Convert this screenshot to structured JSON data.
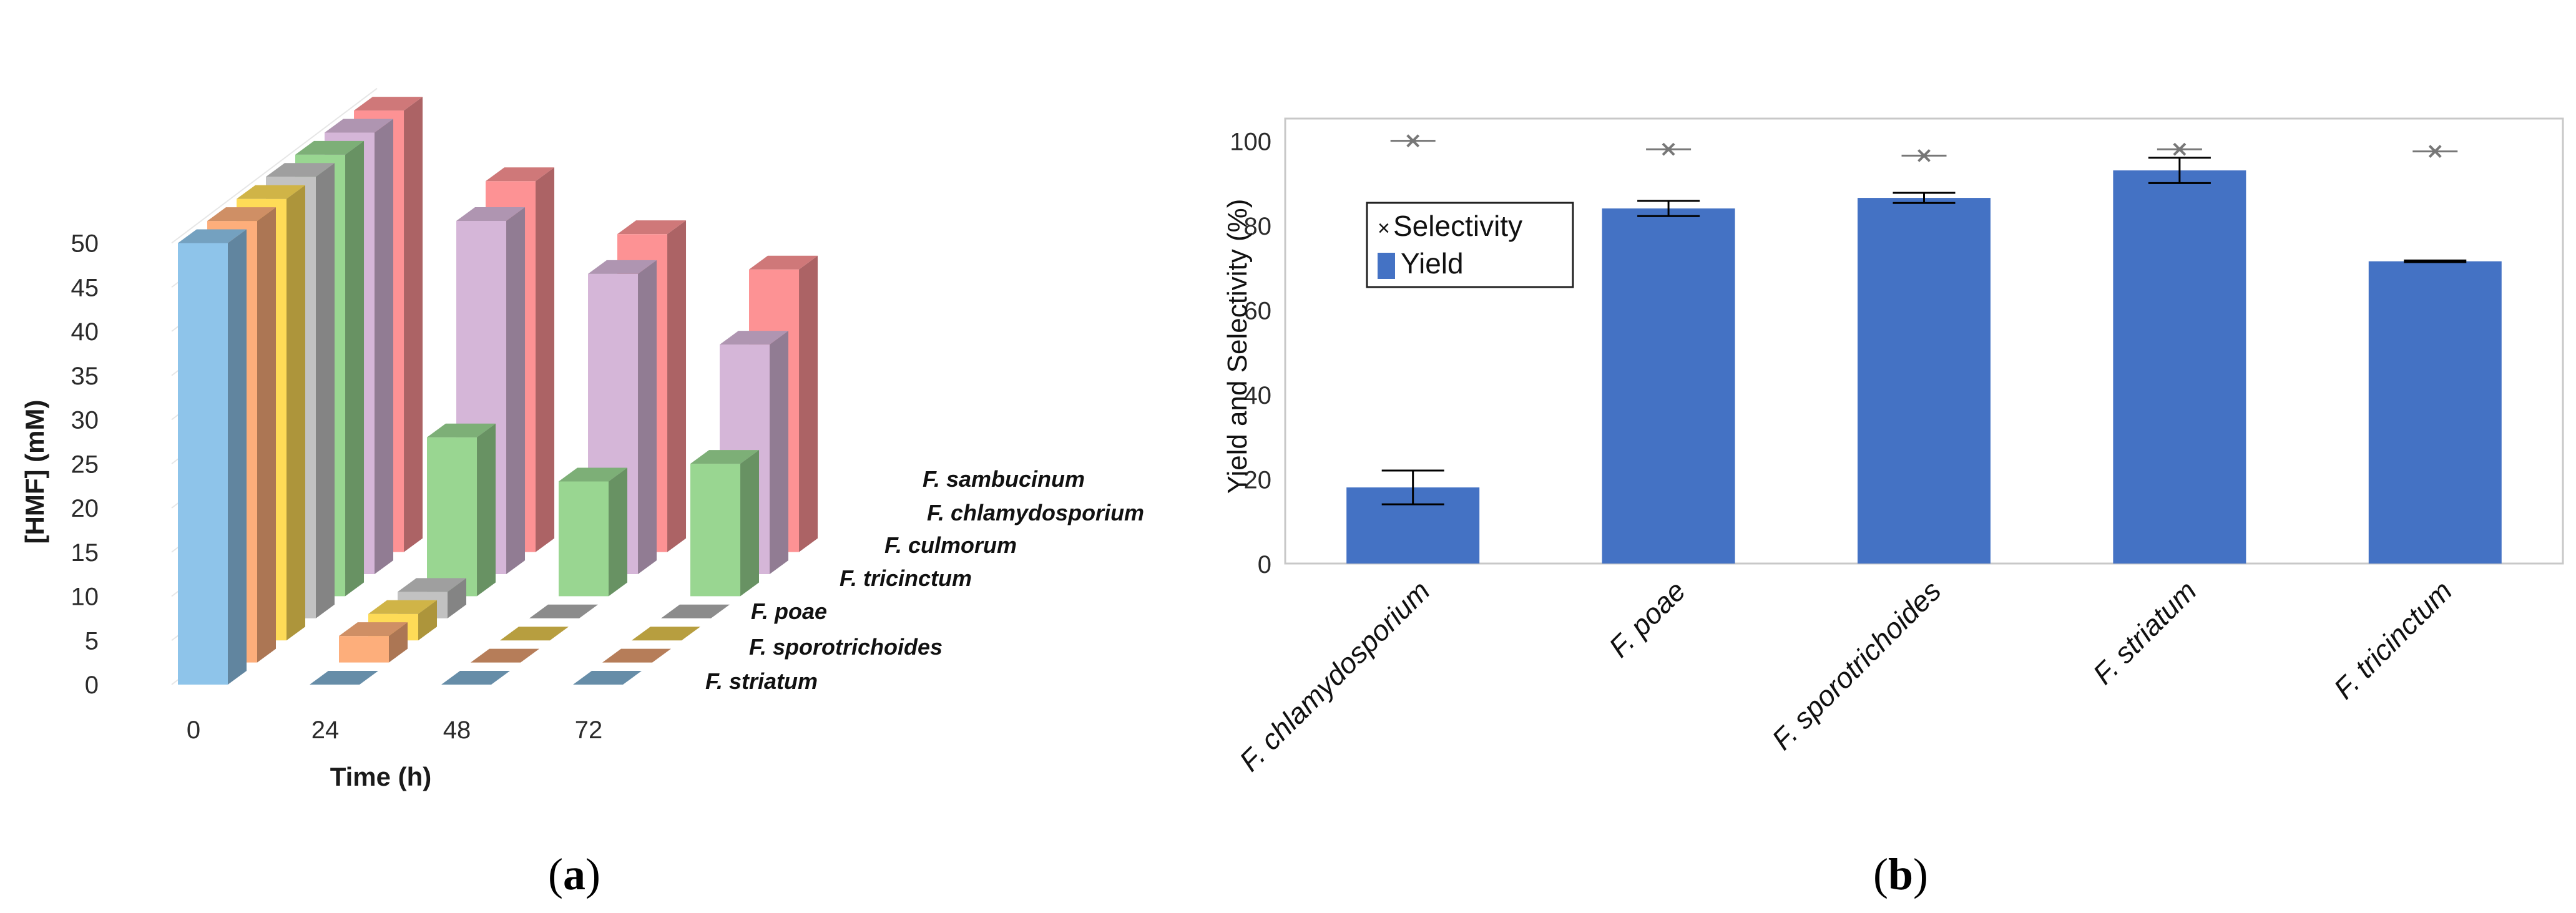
{
  "chart_data": [
    {
      "panel": "a",
      "type": "bar",
      "subtype": "3d-grouped-bar",
      "title": "",
      "xlabel": "Time (h)",
      "ylabel": "[HMF] (mM)",
      "ylim": [
        0,
        50
      ],
      "yticks": [
        "0",
        "5",
        "10",
        "15",
        "20",
        "25",
        "30",
        "35",
        "40",
        "45",
        "50"
      ],
      "categories": [
        "0",
        "24",
        "48",
        "72"
      ],
      "series": [
        {
          "name": "F. striatum",
          "color": "#8ec4ea",
          "values": [
            50,
            0,
            0,
            0
          ]
        },
        {
          "name": "F. sporotrichoides",
          "color": "#fdae7b",
          "values": [
            50,
            3,
            0,
            0
          ]
        },
        {
          "name": "F. poae",
          "color": "#fedb57",
          "values": [
            50,
            3,
            0,
            0
          ]
        },
        {
          "name": "F. tricinctum",
          "color": "#c2c2c2",
          "values": [
            50,
            3,
            0,
            0
          ]
        },
        {
          "name": "F. culmorum",
          "color": "#99d691",
          "values": [
            50,
            18,
            13,
            15
          ]
        },
        {
          "name": "F. chlamydosporium",
          "color": "#d5b6d8",
          "values": [
            50,
            40,
            34,
            26
          ]
        },
        {
          "name": "F. sambucinum",
          "color": "#fd9294",
          "values": [
            50,
            42,
            36,
            32
          ]
        }
      ],
      "panel_label": "a"
    },
    {
      "panel": "b",
      "type": "bar",
      "title": "",
      "xlabel": "",
      "ylabel": "Yield and Selectivity (%)",
      "ylim": [
        0,
        100
      ],
      "yticks": [
        "0",
        "20",
        "40",
        "60",
        "80",
        "100"
      ],
      "categories": [
        "F. chlamydosporium",
        "F. poae",
        "F. sporotrichoides",
        "F. striatum",
        "F. tricinctum"
      ],
      "series": [
        {
          "name": "Yield",
          "color": "#4472c4",
          "values": [
            18,
            84,
            86.5,
            93,
            71.5
          ],
          "error": [
            4,
            1.8,
            1.2,
            3,
            0.2
          ]
        },
        {
          "name": "Selectivity",
          "marker": "x",
          "color": "#777777",
          "values": [
            100,
            98,
            96.5,
            98,
            97.5
          ]
        }
      ],
      "legend": [
        "Selectivity",
        "Yield"
      ],
      "legend_position": "top-left",
      "panel_label": "b"
    }
  ]
}
